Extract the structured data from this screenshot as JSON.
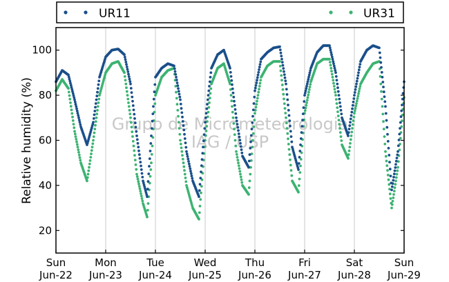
{
  "chart_data": {
    "type": "scatter",
    "title": "",
    "xlabel": "",
    "ylabel": "Relative humidity (%)",
    "ylim": [
      10,
      110
    ],
    "xlim": [
      "2012-06-22 00:00",
      "2012-06-29 00:00"
    ],
    "yticks": [
      20,
      40,
      60,
      80,
      100
    ],
    "xticks": [
      {
        "day": "Sun",
        "date": "Jun-22"
      },
      {
        "day": "Mon",
        "date": "Jun-23"
      },
      {
        "day": "Tue",
        "date": "Jun-24"
      },
      {
        "day": "Wed",
        "date": "Jun-25"
      },
      {
        "day": "Thu",
        "date": "Jun-26"
      },
      {
        "day": "Fri",
        "date": "Jun-27"
      },
      {
        "day": "Sat",
        "date": "Jun-28"
      },
      {
        "day": "Sun",
        "date": "Jun-29"
      }
    ],
    "grid": "vertical",
    "legend": "top",
    "watermark": [
      "Grupo de Micrometeorologia",
      "IAG / USP"
    ],
    "series": [
      {
        "name": "UR11",
        "color": "#1a4f8a",
        "points": [
          [
            "2012-06-22 00:00",
            86
          ],
          [
            "2012-06-22 03:00",
            91
          ],
          [
            "2012-06-22 06:00",
            89
          ],
          [
            "2012-06-22 09:00",
            78
          ],
          [
            "2012-06-22 12:00",
            66
          ],
          [
            "2012-06-22 15:00",
            58
          ],
          [
            "2012-06-22 18:00",
            68
          ],
          [
            "2012-06-22 21:00",
            88
          ],
          [
            "2012-06-23 00:00",
            97
          ],
          [
            "2012-06-23 03:00",
            100
          ],
          [
            "2012-06-23 06:00",
            100.5
          ],
          [
            "2012-06-23 09:00",
            98
          ],
          [
            "2012-06-23 12:00",
            85
          ],
          [
            "2012-06-23 15:00",
            62
          ],
          [
            "2012-06-23 18:00",
            42
          ],
          [
            "2012-06-23 20:00",
            35
          ],
          [
            "2012-06-23 22:00",
            62
          ],
          [
            "2012-06-24 00:00",
            88
          ],
          [
            "2012-06-24 03:00",
            92
          ],
          [
            "2012-06-24 06:00",
            94
          ],
          [
            "2012-06-24 09:00",
            93
          ],
          [
            "2012-06-24 12:00",
            78
          ],
          [
            "2012-06-24 15:00",
            55
          ],
          [
            "2012-06-24 18:00",
            42
          ],
          [
            "2012-06-24 21:00",
            35
          ],
          [
            "2012-06-25 00:00",
            68
          ],
          [
            "2012-06-25 03:00",
            92
          ],
          [
            "2012-06-25 06:00",
            98
          ],
          [
            "2012-06-25 09:00",
            100
          ],
          [
            "2012-06-25 12:00",
            92
          ],
          [
            "2012-06-25 15:00",
            70
          ],
          [
            "2012-06-25 18:00",
            53
          ],
          [
            "2012-06-25 21:00",
            48
          ],
          [
            "2012-06-26 00:00",
            82
          ],
          [
            "2012-06-26 03:00",
            96
          ],
          [
            "2012-06-26 06:00",
            99
          ],
          [
            "2012-06-26 09:00",
            101
          ],
          [
            "2012-06-26 12:00",
            101.5
          ],
          [
            "2012-06-26 15:00",
            85
          ],
          [
            "2012-06-26 18:00",
            57
          ],
          [
            "2012-06-26 21:00",
            47
          ],
          [
            "2012-06-27 00:00",
            80
          ],
          [
            "2012-06-27 03:00",
            92
          ],
          [
            "2012-06-27 06:00",
            99
          ],
          [
            "2012-06-27 09:00",
            102
          ],
          [
            "2012-06-27 12:00",
            102
          ],
          [
            "2012-06-27 15:00",
            90
          ],
          [
            "2012-06-27 18:00",
            70
          ],
          [
            "2012-06-27 21:00",
            62
          ],
          [
            "2012-06-28 00:00",
            80
          ],
          [
            "2012-06-28 03:00",
            95
          ],
          [
            "2012-06-28 06:00",
            100
          ],
          [
            "2012-06-28 09:00",
            102
          ],
          [
            "2012-06-28 12:00",
            101
          ],
          [
            "2012-06-28 15:00",
            75
          ],
          [
            "2012-06-28 18:00",
            38
          ],
          [
            "2012-06-28 21:00",
            55
          ],
          [
            "2012-06-29 00:00",
            86
          ]
        ]
      },
      {
        "name": "UR31",
        "color": "#3cb371",
        "points": [
          [
            "2012-06-22 00:00",
            82
          ],
          [
            "2012-06-22 03:00",
            87
          ],
          [
            "2012-06-22 06:00",
            83
          ],
          [
            "2012-06-22 09:00",
            64
          ],
          [
            "2012-06-22 12:00",
            50
          ],
          [
            "2012-06-22 15:00",
            42
          ],
          [
            "2012-06-22 18:00",
            60
          ],
          [
            "2012-06-22 21:00",
            80
          ],
          [
            "2012-06-23 00:00",
            90
          ],
          [
            "2012-06-23 03:00",
            94
          ],
          [
            "2012-06-23 06:00",
            95
          ],
          [
            "2012-06-23 09:00",
            90
          ],
          [
            "2012-06-23 12:00",
            70
          ],
          [
            "2012-06-23 15:00",
            45
          ],
          [
            "2012-06-23 18:00",
            32
          ],
          [
            "2012-06-23 20:00",
            26
          ],
          [
            "2012-06-23 22:00",
            50
          ],
          [
            "2012-06-24 00:00",
            80
          ],
          [
            "2012-06-24 03:00",
            88
          ],
          [
            "2012-06-24 06:00",
            91
          ],
          [
            "2012-06-24 09:00",
            92
          ],
          [
            "2012-06-24 12:00",
            60
          ],
          [
            "2012-06-24 15:00",
            40
          ],
          [
            "2012-06-24 18:00",
            30
          ],
          [
            "2012-06-24 21:00",
            25
          ],
          [
            "2012-06-25 00:00",
            60
          ],
          [
            "2012-06-25 03:00",
            85
          ],
          [
            "2012-06-25 06:00",
            92
          ],
          [
            "2012-06-25 09:00",
            94
          ],
          [
            "2012-06-25 12:00",
            85
          ],
          [
            "2012-06-25 15:00",
            55
          ],
          [
            "2012-06-25 18:00",
            40
          ],
          [
            "2012-06-25 21:00",
            36
          ],
          [
            "2012-06-26 00:00",
            72
          ],
          [
            "2012-06-26 03:00",
            88
          ],
          [
            "2012-06-26 06:00",
            93
          ],
          [
            "2012-06-26 09:00",
            95
          ],
          [
            "2012-06-26 12:00",
            95
          ],
          [
            "2012-06-26 15:00",
            70
          ],
          [
            "2012-06-26 18:00",
            42
          ],
          [
            "2012-06-26 21:00",
            37
          ],
          [
            "2012-06-27 00:00",
            72
          ],
          [
            "2012-06-27 03:00",
            86
          ],
          [
            "2012-06-27 06:00",
            94
          ],
          [
            "2012-06-27 09:00",
            96
          ],
          [
            "2012-06-27 12:00",
            96
          ],
          [
            "2012-06-27 15:00",
            80
          ],
          [
            "2012-06-27 18:00",
            58
          ],
          [
            "2012-06-27 21:00",
            52
          ],
          [
            "2012-06-28 00:00",
            72
          ],
          [
            "2012-06-28 03:00",
            85
          ],
          [
            "2012-06-28 06:00",
            90
          ],
          [
            "2012-06-28 09:00",
            94
          ],
          [
            "2012-06-28 12:00",
            95
          ],
          [
            "2012-06-28 15:00",
            55
          ],
          [
            "2012-06-28 18:00",
            30
          ],
          [
            "2012-06-28 21:00",
            48
          ],
          [
            "2012-06-29 00:00",
            79
          ]
        ]
      }
    ]
  }
}
